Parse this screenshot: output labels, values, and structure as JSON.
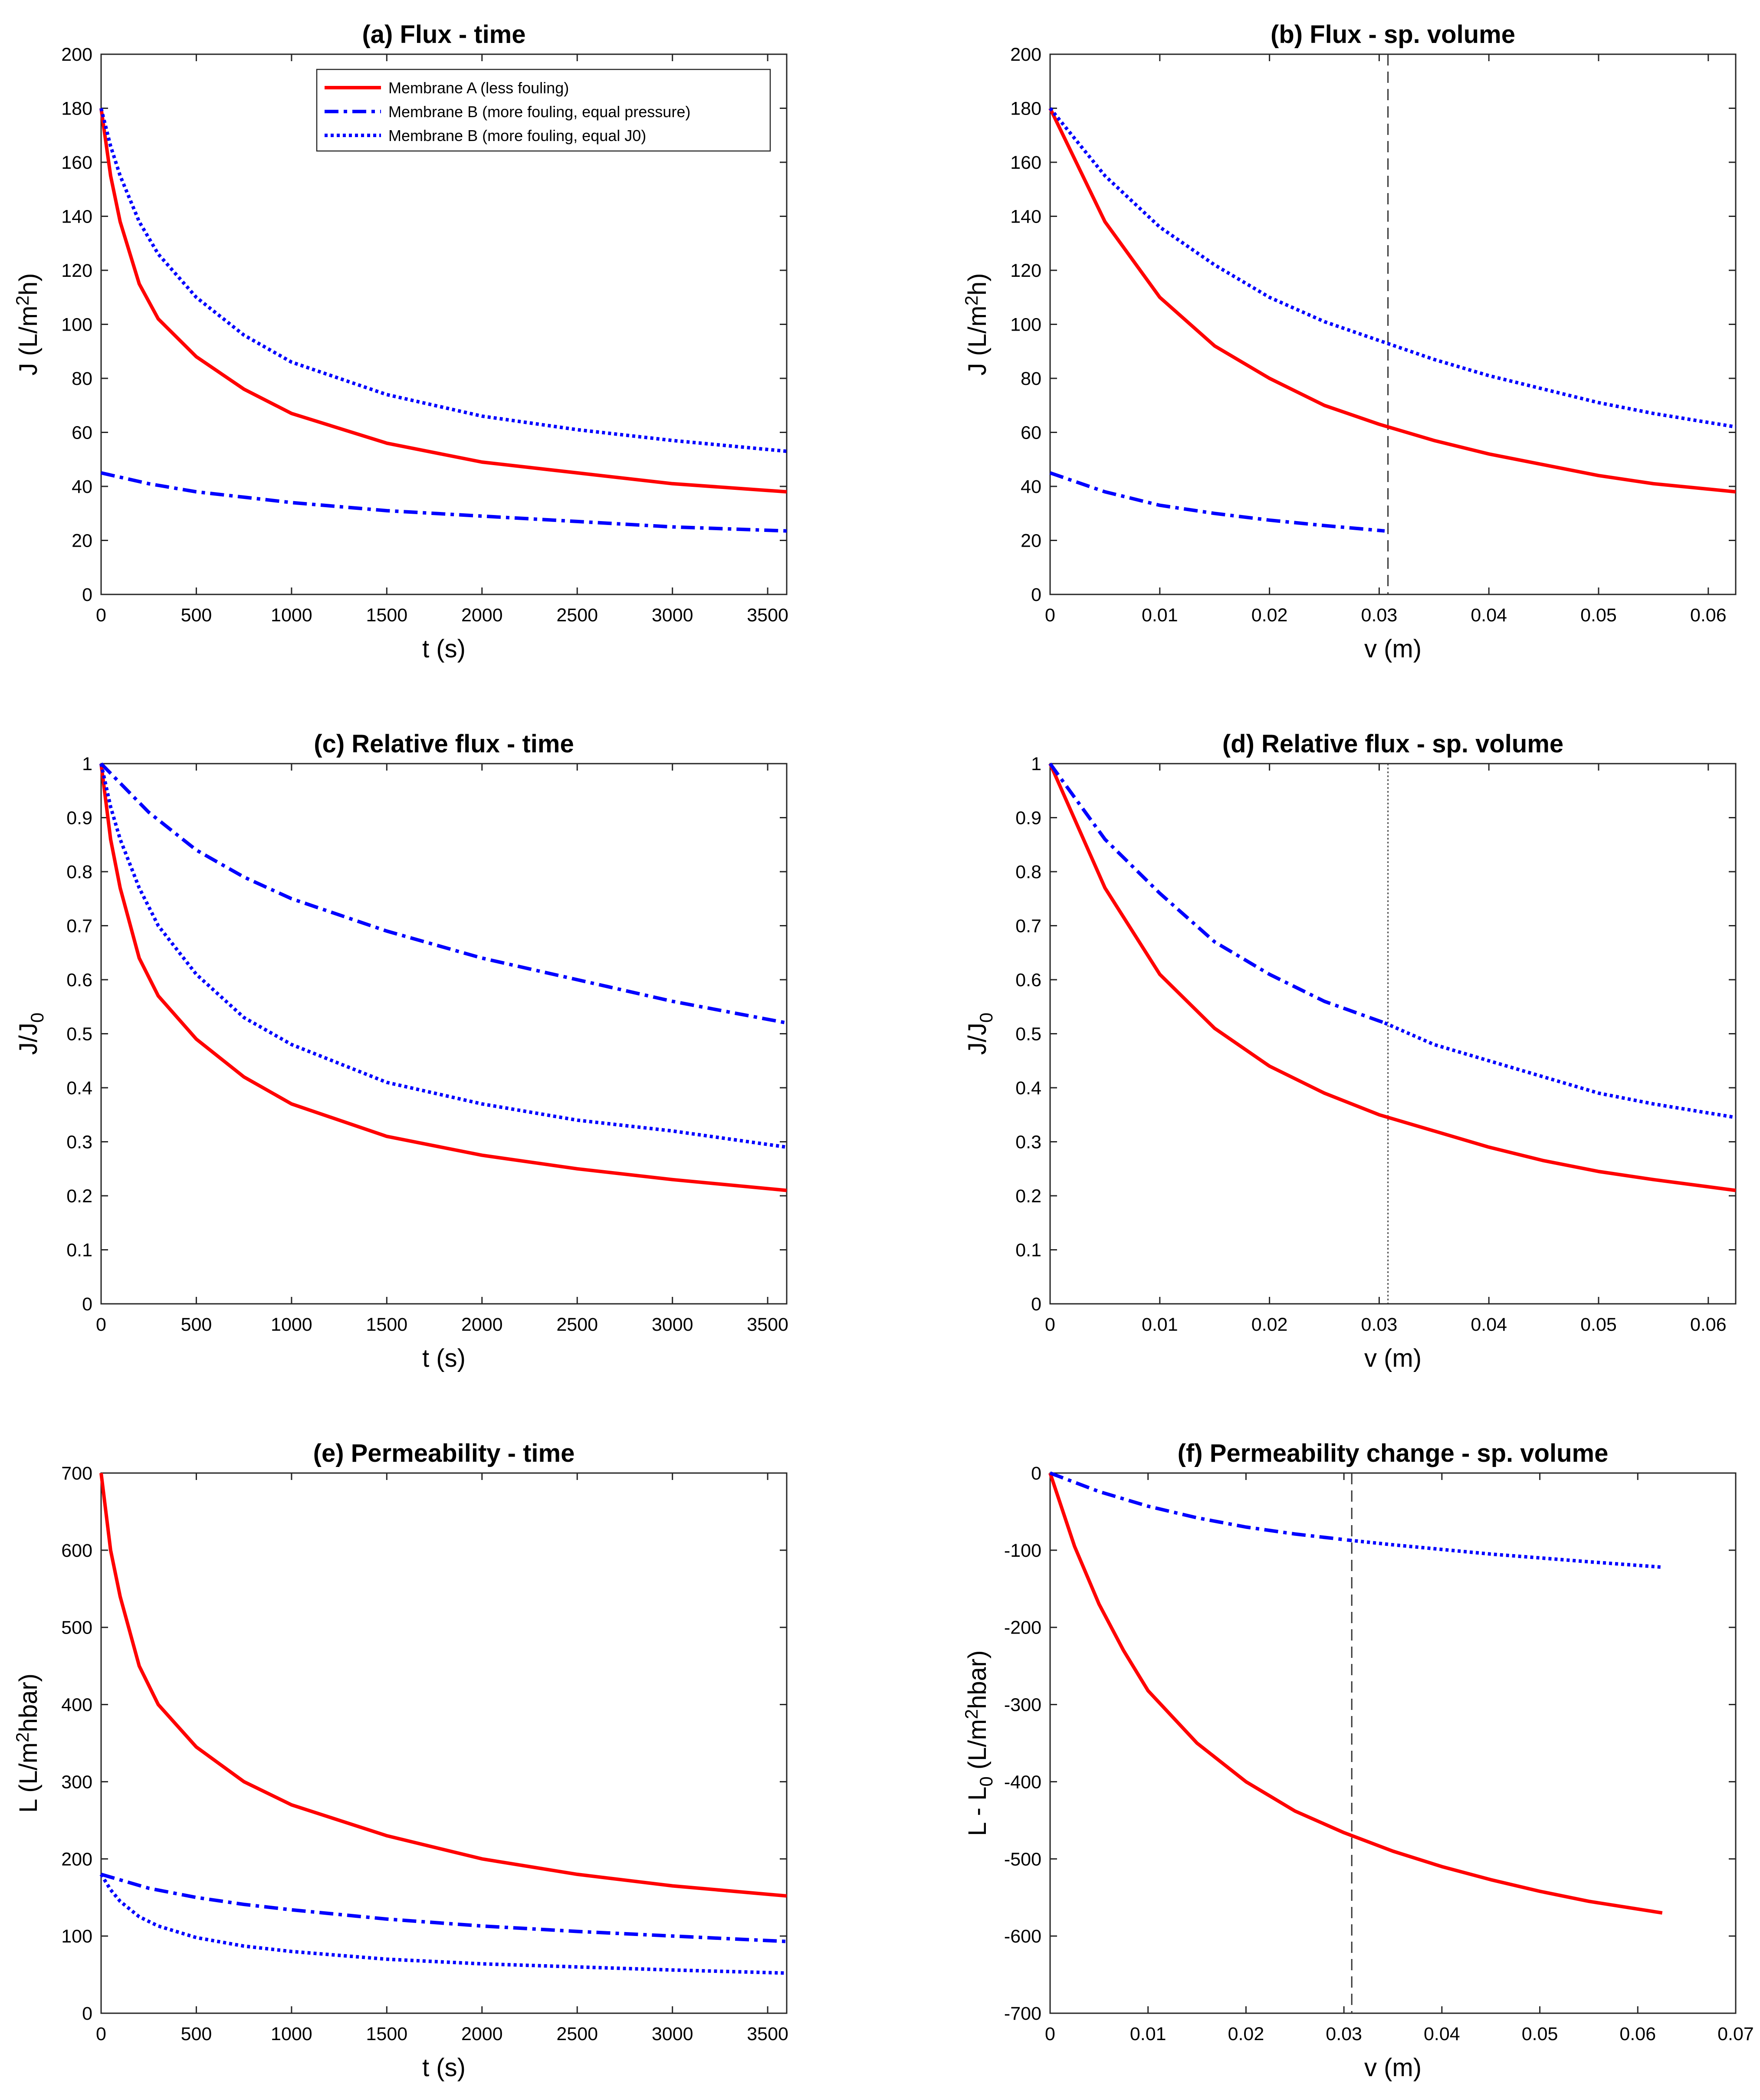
{
  "legend": [
    {
      "name": "Membrane A (less fouling)",
      "color": "#ff0000",
      "style": "solid"
    },
    {
      "name": "Membrane B (more fouling, equal pressure)",
      "color": "#0000ff",
      "style": "dashdot"
    },
    {
      "name": "Membrane B (more fouling, equal J0)",
      "color": "#0000ff",
      "style": "dotted"
    }
  ],
  "chart_data": [
    {
      "id": "a",
      "type": "line",
      "title": "(a) Flux - time",
      "xlabel": "t (s)",
      "ylabel_main": "J (L/m",
      "ylabel_sup": "2",
      "ylabel_tail": "h)",
      "xlim": [
        0,
        3600
      ],
      "ylim": [
        0,
        200
      ],
      "xticks": [
        0,
        500,
        1000,
        1500,
        2000,
        2500,
        3000,
        3500
      ],
      "xtick_labels": [
        "0",
        "500",
        "1000",
        "1500",
        "2000",
        "2500",
        "3000",
        "3500"
      ],
      "yticks": [
        0,
        20,
        40,
        60,
        80,
        100,
        120,
        140,
        160,
        180,
        200
      ],
      "ytick_labels": [
        "0",
        "20",
        "40",
        "60",
        "80",
        "100",
        "120",
        "140",
        "160",
        "180",
        "200"
      ],
      "vline": null,
      "series": [
        {
          "name": "Membrane A (less fouling)",
          "color": "#ff0000",
          "style": "solid",
          "x": [
            0,
            50,
            100,
            200,
            300,
            500,
            750,
            1000,
            1500,
            2000,
            2500,
            3000,
            3600
          ],
          "y": [
            180,
            155,
            138,
            115,
            102,
            88,
            76,
            67,
            56,
            49,
            45,
            41,
            38
          ]
        },
        {
          "name": "Membrane B (more fouling, equal pressure)",
          "color": "#0000ff",
          "style": "dashdot",
          "x": [
            0,
            250,
            500,
            750,
            1000,
            1500,
            2000,
            2500,
            3000,
            3600
          ],
          "y": [
            45,
            41,
            38,
            36,
            34,
            31,
            29,
            27,
            25,
            23.5
          ]
        },
        {
          "name": "Membrane B (more fouling, equal J0)",
          "color": "#0000ff",
          "style": "dotted",
          "x": [
            0,
            50,
            100,
            200,
            300,
            500,
            750,
            1000,
            1500,
            2000,
            2500,
            3000,
            3600
          ],
          "y": [
            180,
            166,
            155,
            138,
            126,
            110,
            96,
            86,
            74,
            66,
            61,
            57,
            53
          ]
        }
      ]
    },
    {
      "id": "b",
      "type": "line",
      "title": "(b) Flux - sp. volume",
      "xlabel": "v (m)",
      "ylabel_main": "J (L/m",
      "ylabel_sup": "2",
      "ylabel_tail": "h)",
      "xlim": [
        0,
        0.0625
      ],
      "ylim": [
        0,
        200
      ],
      "xticks": [
        0,
        0.01,
        0.02,
        0.03,
        0.04,
        0.05,
        0.06
      ],
      "xtick_labels": [
        "0",
        "0.01",
        "0.02",
        "0.03",
        "0.04",
        "0.05",
        "0.06"
      ],
      "yticks": [
        0,
        20,
        40,
        60,
        80,
        100,
        120,
        140,
        160,
        180,
        200
      ],
      "ytick_labels": [
        "0",
        "20",
        "40",
        "60",
        "80",
        "100",
        "120",
        "140",
        "160",
        "180",
        "200"
      ],
      "vline": {
        "x": 0.0308,
        "style": "dashed"
      },
      "series": [
        {
          "name": "Membrane A (less fouling)",
          "color": "#ff0000",
          "style": "solid",
          "x": [
            0,
            0.005,
            0.01,
            0.015,
            0.02,
            0.025,
            0.03,
            0.035,
            0.04,
            0.045,
            0.05,
            0.055,
            0.0625
          ],
          "y": [
            180,
            138,
            110,
            92,
            80,
            70,
            63,
            57,
            52,
            48,
            44,
            41,
            38
          ]
        },
        {
          "name": "Membrane B (more fouling, equal pressure)",
          "color": "#0000ff",
          "style": "dashdot",
          "x": [
            0,
            0.005,
            0.01,
            0.015,
            0.02,
            0.025,
            0.0305
          ],
          "y": [
            45,
            38,
            33,
            30,
            27.5,
            25.5,
            23.5
          ]
        },
        {
          "name": "Membrane B (more fouling, equal J0)",
          "color": "#0000ff",
          "style": "dotted",
          "x": [
            0,
            0.005,
            0.01,
            0.015,
            0.02,
            0.025,
            0.03,
            0.035,
            0.04,
            0.045,
            0.05,
            0.055,
            0.0625
          ],
          "y": [
            180,
            155,
            136,
            122,
            110,
            101,
            94,
            87,
            81,
            76,
            71,
            67,
            62
          ]
        }
      ]
    },
    {
      "id": "c",
      "type": "line",
      "title": "(c) Relative flux - time",
      "xlabel": "t (s)",
      "ylabel_main": "J/J",
      "ylabel_sub": "0",
      "xlim": [
        0,
        3600
      ],
      "ylim": [
        0,
        1
      ],
      "xticks": [
        0,
        500,
        1000,
        1500,
        2000,
        2500,
        3000,
        3500
      ],
      "xtick_labels": [
        "0",
        "500",
        "1000",
        "1500",
        "2000",
        "2500",
        "3000",
        "3500"
      ],
      "yticks": [
        0,
        0.1,
        0.2,
        0.3,
        0.4,
        0.5,
        0.6,
        0.7,
        0.8,
        0.9,
        1
      ],
      "ytick_labels": [
        "0",
        "0.1",
        "0.2",
        "0.3",
        "0.4",
        "0.5",
        "0.6",
        "0.7",
        "0.8",
        "0.9",
        "1"
      ],
      "vline": null,
      "series": [
        {
          "name": "Membrane A (less fouling)",
          "color": "#ff0000",
          "style": "solid",
          "x": [
            0,
            50,
            100,
            200,
            300,
            500,
            750,
            1000,
            1500,
            2000,
            2500,
            3000,
            3600
          ],
          "y": [
            1,
            0.86,
            0.77,
            0.64,
            0.57,
            0.49,
            0.42,
            0.37,
            0.31,
            0.275,
            0.25,
            0.23,
            0.21
          ]
        },
        {
          "name": "Membrane B (more fouling, equal pressure)",
          "color": "#0000ff",
          "style": "dashdot",
          "x": [
            0,
            250,
            500,
            750,
            1000,
            1500,
            2000,
            2500,
            3000,
            3600
          ],
          "y": [
            1,
            0.91,
            0.84,
            0.79,
            0.75,
            0.69,
            0.64,
            0.6,
            0.56,
            0.52
          ]
        },
        {
          "name": "Membrane B (more fouling, equal J0)",
          "color": "#0000ff",
          "style": "dotted",
          "x": [
            0,
            50,
            100,
            200,
            300,
            500,
            750,
            1000,
            1500,
            2000,
            2500,
            3000,
            3600
          ],
          "y": [
            1,
            0.92,
            0.86,
            0.77,
            0.7,
            0.61,
            0.53,
            0.48,
            0.41,
            0.37,
            0.34,
            0.32,
            0.29
          ]
        }
      ]
    },
    {
      "id": "d",
      "type": "line",
      "title": "(d) Relative flux - sp. volume",
      "xlabel": "v (m)",
      "ylabel_main": "J/J",
      "ylabel_sub": "0",
      "xlim": [
        0,
        0.0625
      ],
      "ylim": [
        0,
        1
      ],
      "xticks": [
        0,
        0.01,
        0.02,
        0.03,
        0.04,
        0.05,
        0.06
      ],
      "xtick_labels": [
        "0",
        "0.01",
        "0.02",
        "0.03",
        "0.04",
        "0.05",
        "0.06"
      ],
      "yticks": [
        0,
        0.1,
        0.2,
        0.3,
        0.4,
        0.5,
        0.6,
        0.7,
        0.8,
        0.9,
        1
      ],
      "ytick_labels": [
        "0",
        "0.1",
        "0.2",
        "0.3",
        "0.4",
        "0.5",
        "0.6",
        "0.7",
        "0.8",
        "0.9",
        "1"
      ],
      "vline": {
        "x": 0.0308,
        "style": "dotted"
      },
      "series": [
        {
          "name": "Membrane A (less fouling)",
          "color": "#ff0000",
          "style": "solid",
          "x": [
            0,
            0.005,
            0.01,
            0.015,
            0.02,
            0.025,
            0.03,
            0.035,
            0.04,
            0.045,
            0.05,
            0.055,
            0.0625
          ],
          "y": [
            1,
            0.77,
            0.61,
            0.51,
            0.44,
            0.39,
            0.35,
            0.32,
            0.29,
            0.265,
            0.245,
            0.23,
            0.21
          ]
        },
        {
          "name": "Membrane B (more fouling, equal pressure)",
          "color": "#0000ff",
          "style": "dashdot",
          "x": [
            0,
            0.005,
            0.01,
            0.015,
            0.02,
            0.025,
            0.0305
          ],
          "y": [
            1,
            0.86,
            0.76,
            0.67,
            0.61,
            0.56,
            0.52
          ]
        },
        {
          "name": "Membrane B (more fouling, equal J0)",
          "color": "#0000ff",
          "style": "dotted",
          "x": [
            0.0305,
            0.035,
            0.04,
            0.045,
            0.05,
            0.055,
            0.0625
          ],
          "y": [
            0.52,
            0.48,
            0.45,
            0.42,
            0.39,
            0.37,
            0.345
          ]
        }
      ]
    },
    {
      "id": "e",
      "type": "line",
      "title": "(e) Permeability - time",
      "xlabel": "t (s)",
      "ylabel_main": "L (L/m",
      "ylabel_sup": "2",
      "ylabel_tail": "hbar)",
      "xlim": [
        0,
        3600
      ],
      "ylim": [
        0,
        700
      ],
      "xticks": [
        0,
        500,
        1000,
        1500,
        2000,
        2500,
        3000,
        3500
      ],
      "xtick_labels": [
        "0",
        "500",
        "1000",
        "1500",
        "2000",
        "2500",
        "3000",
        "3500"
      ],
      "yticks": [
        0,
        100,
        200,
        300,
        400,
        500,
        600,
        700
      ],
      "ytick_labels": [
        "0",
        "100",
        "200",
        "300",
        "400",
        "500",
        "600",
        "700"
      ],
      "vline": null,
      "series": [
        {
          "name": "Membrane A (less fouling)",
          "color": "#ff0000",
          "style": "solid",
          "x": [
            0,
            50,
            100,
            200,
            300,
            500,
            750,
            1000,
            1500,
            2000,
            2500,
            3000,
            3600
          ],
          "y": [
            700,
            600,
            540,
            450,
            400,
            345,
            300,
            270,
            230,
            200,
            180,
            165,
            152
          ]
        },
        {
          "name": "Membrane B (more fouling, equal pressure)",
          "color": "#0000ff",
          "style": "dashdot",
          "x": [
            0,
            250,
            500,
            750,
            1000,
            1500,
            2000,
            2500,
            3000,
            3600
          ],
          "y": [
            180,
            162,
            150,
            141,
            134,
            122,
            113,
            106,
            100,
            93
          ]
        },
        {
          "name": "Membrane B (more fouling, equal J0)",
          "color": "#0000ff",
          "style": "dotted",
          "x": [
            0,
            50,
            100,
            200,
            300,
            500,
            750,
            1000,
            1500,
            2000,
            2500,
            3000,
            3600
          ],
          "y": [
            180,
            160,
            145,
            125,
            113,
            98,
            87,
            80,
            70,
            64,
            60,
            56,
            52
          ]
        }
      ]
    },
    {
      "id": "f",
      "type": "line",
      "title": "(f) Permeability change - sp. volume",
      "xlabel": "v (m)",
      "ylabel_main": "L - L",
      "ylabel_sub": "0",
      "ylabel_tail": " (L/m",
      "ylabel_sup": "2",
      "ylabel_tail2": "hbar)",
      "xlim": [
        0,
        0.07
      ],
      "ylim": [
        -700,
        0
      ],
      "xticks": [
        0,
        0.01,
        0.02,
        0.03,
        0.04,
        0.05,
        0.06,
        0.07
      ],
      "xtick_labels": [
        "0",
        "0.01",
        "0.02",
        "0.03",
        "0.04",
        "0.05",
        "0.06",
        "0.07"
      ],
      "yticks": [
        -700,
        -600,
        -500,
        -400,
        -300,
        -200,
        -100,
        0
      ],
      "ytick_labels": [
        "-700",
        "-600",
        "-500",
        "-400",
        "-300",
        "-200",
        "-100",
        "0"
      ],
      "vline": {
        "x": 0.0308,
        "style": "dashed"
      },
      "series": [
        {
          "name": "Membrane A (less fouling)",
          "color": "#ff0000",
          "style": "solid",
          "x": [
            0,
            0.0025,
            0.005,
            0.0075,
            0.01,
            0.015,
            0.02,
            0.025,
            0.03,
            0.035,
            0.04,
            0.045,
            0.05,
            0.055,
            0.0625
          ],
          "y": [
            0,
            -95,
            -170,
            -230,
            -282,
            -350,
            -400,
            -438,
            -466,
            -490,
            -510,
            -527,
            -542,
            -555,
            -570
          ]
        },
        {
          "name": "Membrane B (more fouling, equal pressure)",
          "color": "#0000ff",
          "style": "dashdot",
          "x": [
            0,
            0.005,
            0.01,
            0.015,
            0.02,
            0.025,
            0.0305
          ],
          "y": [
            0,
            -24,
            -43,
            -58,
            -70,
            -79,
            -87
          ]
        },
        {
          "name": "Membrane B (more fouling, equal J0)",
          "color": "#0000ff",
          "style": "dotted",
          "x": [
            0.0305,
            0.035,
            0.04,
            0.045,
            0.05,
            0.055,
            0.0625
          ],
          "y": [
            -87,
            -93,
            -99,
            -105,
            -110,
            -115,
            -122
          ]
        }
      ]
    }
  ]
}
